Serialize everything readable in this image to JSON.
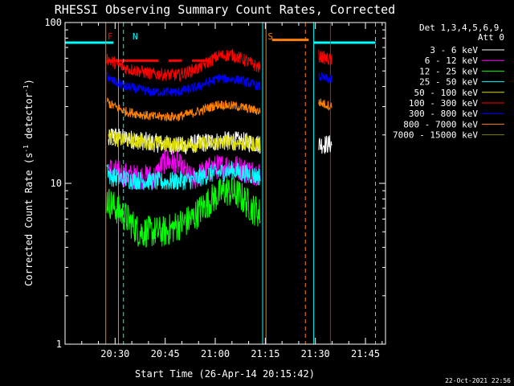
{
  "colors": {
    "background": "#000000",
    "axes": "#ffffff",
    "att_state": "#ff8000",
    "night": "#00ffff",
    "flare_flag": "#ff0000"
  },
  "chart_data": {
    "type": "line",
    "title": "RHESSI Observing Summary Count Rates, Corrected",
    "xlabel": "Start Time (26-Apr-14 20:15:42)",
    "ylabel": "Corrected Count Rate (s⁻¹ detector⁻¹)",
    "ylabel_main": "Corrected Count Rate (s",
    "ylabel_exp1": "-1",
    "ylabel_mid": " detector",
    "ylabel_exp2": "-1",
    "ylabel_end": ")",
    "yscale": "log",
    "ylim": [
      1,
      100
    ],
    "xlim_minutes": [
      0,
      96
    ],
    "ytick_values": [
      1,
      10,
      100
    ],
    "ytick_labels": [
      "1",
      "10",
      "100"
    ],
    "xtick_minutes": [
      15,
      30,
      45,
      60,
      75,
      90
    ],
    "xtick_labels": [
      "20:30",
      "20:45",
      "21:00",
      "21:15",
      "21:30",
      "21:45"
    ],
    "legend_header": [
      "Det 1,3,4,5,6,9,",
      "Att 0"
    ],
    "legend_placement": "right, outside plot",
    "stamp": "22-Oct-2021 22:56",
    "annotations": [
      {
        "text": "N",
        "x": 19.5,
        "color": "#00ffff"
      },
      {
        "text": "F",
        "x": 12.0,
        "color": "#ff0000"
      },
      {
        "text": "S",
        "x": 60.0,
        "color": "#ff8000"
      }
    ],
    "night_intervals": [
      [
        0,
        14.5
      ],
      [
        74.5,
        93.0
      ]
    ],
    "night_level": 75,
    "dashed_lines": [
      {
        "x": 17.5,
        "color": "#00ffff"
      },
      {
        "x": 93.0,
        "color": "#00ffff"
      },
      {
        "x": 72.0,
        "color": "#ff8000"
      }
    ],
    "solid_lines": [
      {
        "x": 12.2,
        "color": "#ff8000"
      },
      {
        "x": 16.0,
        "color": "#ff8000"
      },
      {
        "x": 59.2,
        "color": "#00ffff"
      },
      {
        "x": 60.2,
        "color": "#ff8000"
      },
      {
        "x": 74.5,
        "color": "#00ffff"
      },
      {
        "x": 79.5,
        "color": "#ff0000"
      }
    ],
    "att_state_segment": {
      "x": [
        62,
        73
      ],
      "y": 78,
      "color": "#ff8000"
    },
    "flare_flag_segments": [
      [
        12.5,
        28
      ],
      [
        31,
        35
      ],
      [
        38,
        43
      ]
    ],
    "flare_flag_level": 58,
    "series": [
      {
        "name": "3 - 6 keV",
        "color": "#ffffff",
        "noise": 0.06,
        "x": [
          13,
          14,
          18,
          26,
          34,
          42,
          50,
          55,
          58.5
        ],
        "y": [
          18,
          20,
          19,
          18,
          17,
          18,
          18.5,
          18,
          17.5
        ],
        "x2": [
          76,
          80
        ],
        "y2": [
          17.5,
          17.5
        ]
      },
      {
        "name": "6 - 12 keV",
        "color": "#ff00ff",
        "noise": 0.08,
        "x": [
          13,
          14,
          20,
          27,
          30,
          34,
          38,
          44,
          50,
          54,
          58.5
        ],
        "y": [
          12.5,
          12,
          11,
          11,
          14,
          13,
          10.5,
          12.5,
          13,
          12,
          11.5
        ],
        "x2": [
          76,
          80
        ],
        "y2": [
          0,
          0
        ]
      },
      {
        "name": "12 - 25 keV",
        "color": "#00ff00",
        "noise": 0.1,
        "x": [
          12.5,
          13.5,
          17,
          22,
          30,
          38,
          44,
          48,
          52,
          56,
          58.5
        ],
        "y": [
          8,
          7.5,
          6.5,
          5,
          5,
          6,
          8,
          9,
          8.5,
          7,
          6.5
        ],
        "x2": [
          76,
          80
        ],
        "y2": [
          0,
          0
        ]
      },
      {
        "name": "25 - 50 keV",
        "color": "#00ffff",
        "noise": 0.06,
        "x": [
          12.5,
          13.5,
          20,
          30,
          38,
          44,
          50,
          58.5
        ],
        "y": [
          13,
          11,
          10.5,
          10.2,
          10.5,
          11.5,
          12,
          11
        ],
        "x2": [
          76,
          80
        ],
        "y2": [
          0,
          0
        ]
      },
      {
        "name": "50 - 100 keV",
        "color": "#dddd00",
        "noise": 0.05,
        "x": [
          13,
          14,
          20,
          30,
          40,
          50,
          58.5
        ],
        "y": [
          20,
          19,
          18.5,
          17.5,
          17.5,
          18,
          17.5
        ],
        "x2": [
          76,
          80
        ],
        "y2": [
          0,
          0
        ]
      },
      {
        "name": "100 - 300 keV",
        "color": "#ff0000",
        "noise": 0.04,
        "x": [
          12.5,
          13.5,
          18,
          26,
          34,
          40,
          46,
          50,
          54,
          58.5
        ],
        "y": [
          60,
          58,
          52,
          48,
          47,
          52,
          62,
          63,
          58,
          52
        ],
        "x2": [
          76,
          80
        ],
        "y2": [
          62,
          58
        ]
      },
      {
        "name": "300 - 800 keV",
        "color": "#0000ff",
        "noise": 0.03,
        "x": [
          12.5,
          13.5,
          18,
          26,
          34,
          40,
          46,
          52,
          58.5
        ],
        "y": [
          48,
          44,
          40,
          37,
          37,
          40,
          45,
          44,
          40
        ],
        "x2": [
          76,
          80
        ],
        "y2": [
          46,
          44
        ]
      },
      {
        "name": "800 - 7000 keV",
        "color": "#ff8000",
        "noise": 0.03,
        "x": [
          12.5,
          13.5,
          18,
          26,
          34,
          40,
          46,
          52,
          58.5
        ],
        "y": [
          33,
          31,
          28,
          26,
          26,
          28,
          31,
          30,
          28
        ],
        "x2": [
          76,
          80
        ],
        "y2": [
          32,
          30
        ]
      },
      {
        "name": "7000 - 15000 keV",
        "color": "#808000",
        "noise": 0.03,
        "x": [],
        "y": [],
        "x2": [],
        "y2": []
      }
    ]
  }
}
